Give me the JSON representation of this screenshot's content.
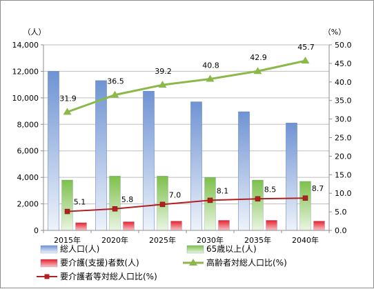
{
  "chart_data": {
    "type": "bar",
    "categories": [
      "2015年",
      "2020年",
      "2025年",
      "2030年",
      "2035年",
      "2040年"
    ],
    "left_unit": "（人）",
    "right_unit": "（%）",
    "left_ylim": [
      0,
      14000
    ],
    "left_ticks": [
      "0",
      "2,000",
      "4,000",
      "6,000",
      "8,000",
      "10,000",
      "12,000",
      "14,000"
    ],
    "right_ylim": [
      0,
      50
    ],
    "right_ticks": [
      "0.0",
      "5.0",
      "10.0",
      "15.0",
      "20.0",
      "25.0",
      "30.0",
      "35.0",
      "40.0",
      "45.0",
      "50.0"
    ],
    "grid": true,
    "series": [
      {
        "name": "総人口(人)",
        "kind": "bar",
        "axis": "left",
        "color": "#7fa0d8",
        "values": [
          12000,
          11300,
          10500,
          9700,
          8950,
          8100
        ]
      },
      {
        "name": "65歳以上(人)",
        "kind": "bar",
        "axis": "left",
        "color": "#8fc85a",
        "values": [
          3800,
          4100,
          4100,
          4000,
          3800,
          3700
        ]
      },
      {
        "name": "要介護(支援)者数(人)",
        "kind": "bar",
        "axis": "left",
        "color": "#e0303a",
        "values": [
          580,
          650,
          700,
          760,
          760,
          700
        ]
      },
      {
        "name": "高齢者対総人口比(%)",
        "kind": "line",
        "axis": "right",
        "color": "#8cb84a",
        "marker": "triangle",
        "values": [
          31.9,
          36.5,
          39.2,
          40.8,
          42.9,
          45.7
        ],
        "labels": [
          "31.9",
          "36.5",
          "39.2",
          "40.8",
          "42.9",
          "45.7"
        ]
      },
      {
        "name": "要介護者等対総人口比(%)",
        "kind": "line",
        "axis": "right",
        "color": "#b02020",
        "marker": "square",
        "values": [
          5.1,
          5.8,
          7.0,
          8.1,
          8.5,
          8.7
        ],
        "labels": [
          "5.1",
          "5.8",
          "7.0",
          "8.1",
          "8.5",
          "8.7"
        ]
      }
    ],
    "legend": "bottom"
  }
}
